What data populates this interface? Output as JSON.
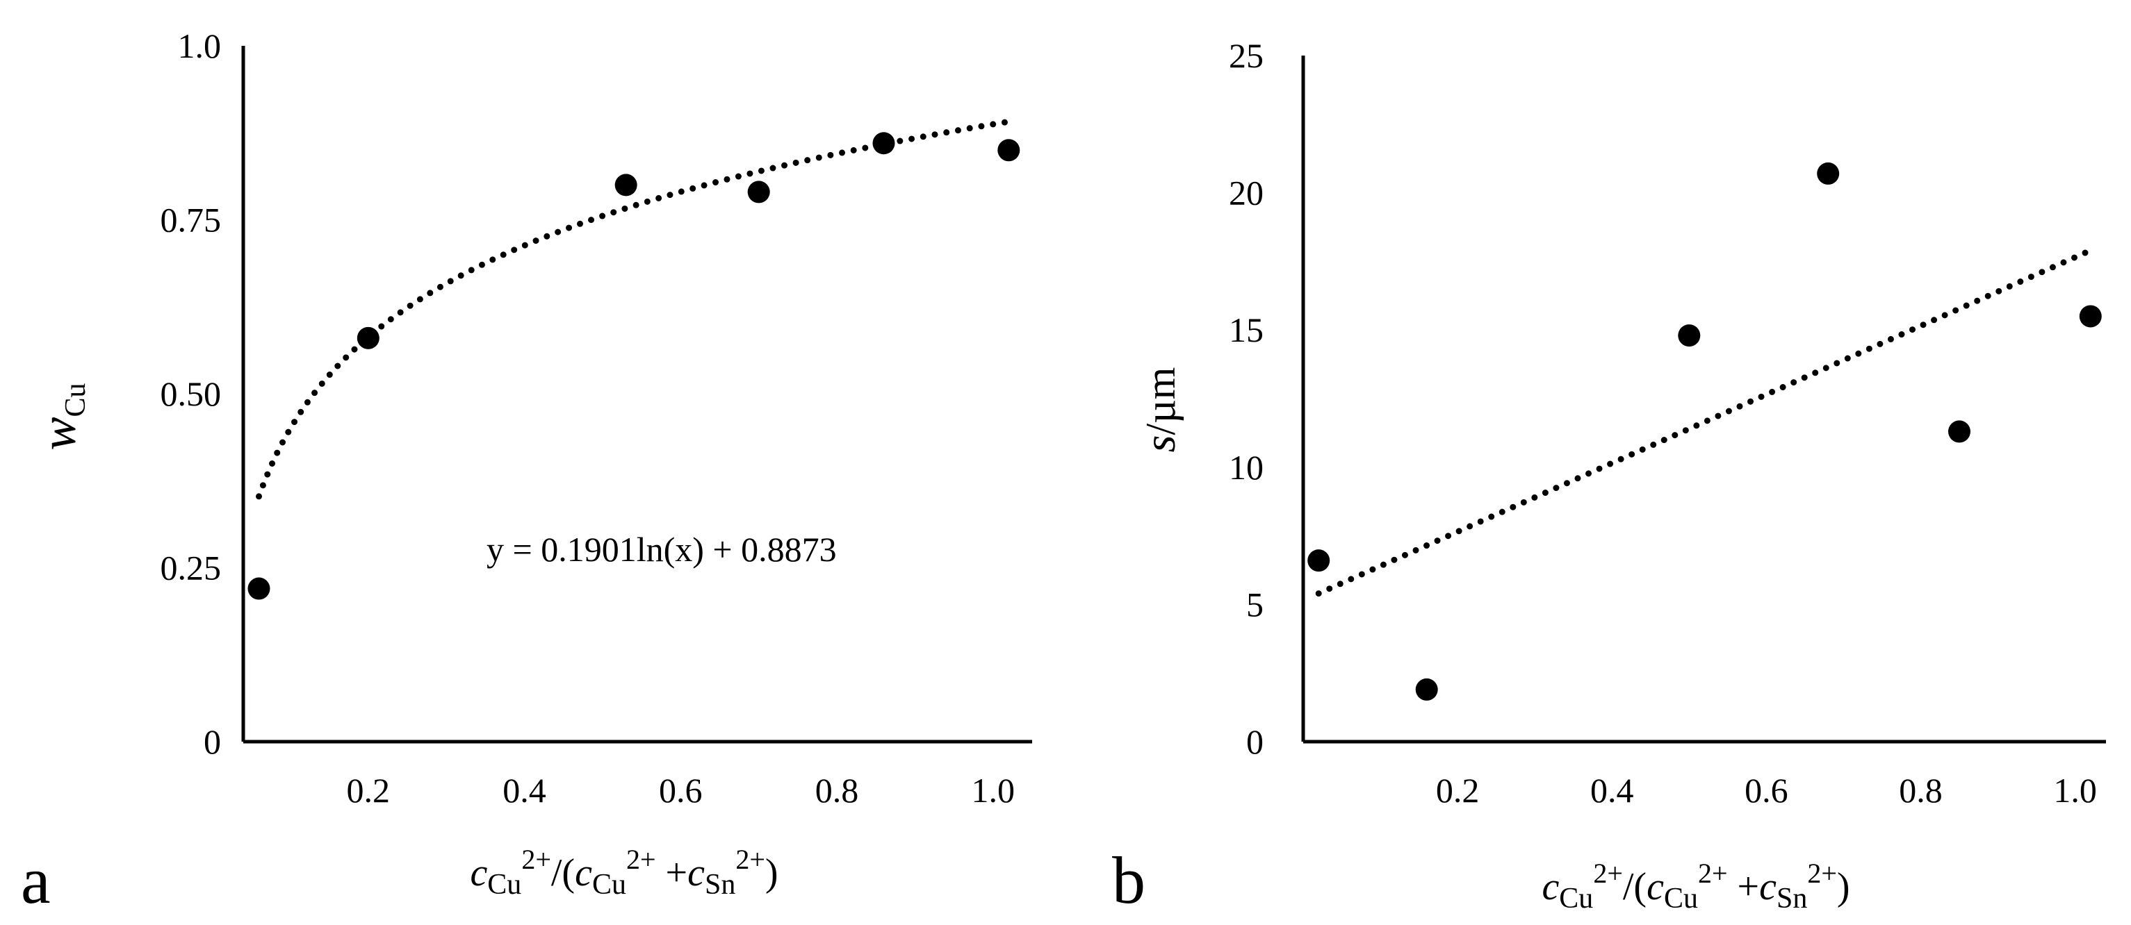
{
  "chart_data": [
    {
      "panel_label": "a",
      "type": "scatter",
      "x": [
        0.06,
        0.2,
        0.53,
        0.7,
        0.86,
        1.02
      ],
      "y": [
        0.22,
        0.58,
        0.8,
        0.79,
        0.86,
        0.85
      ],
      "trendline": {
        "kind": "log",
        "a": 0.1901,
        "b": 0.8873,
        "x_range": [
          0.06,
          1.02
        ]
      },
      "equation": "y = 0.1901ln(x) + 0.8873",
      "ylabel": {
        "main": "w",
        "sub": "Cu"
      },
      "xlabel": {
        "c1": "c",
        "s1": "Cu",
        "p1": "2+",
        "mid": "/(",
        "c2": "c",
        "s2": "Cu",
        "p2": "2+",
        "plus": " +",
        "c3": "c",
        "s3": "Sn",
        "p3": "2+",
        "end": ")"
      },
      "xlim": [
        0.04,
        1.05
      ],
      "ylim": [
        0,
        1.0
      ],
      "xticks": [
        0.2,
        0.4,
        0.6,
        0.8,
        1.0
      ],
      "xtick_labels": [
        "0.2",
        "0.4",
        "0.6",
        "0.8",
        "1.0"
      ],
      "yticks": [
        0,
        0.25,
        0.5,
        0.75,
        1.0
      ],
      "ytick_labels": [
        "0",
        "0.25",
        "0.50",
        "0.75",
        "1.0"
      ],
      "grid": false
    },
    {
      "panel_label": "b",
      "type": "scatter",
      "x": [
        0.02,
        0.16,
        0.5,
        0.68,
        0.85,
        1.02
      ],
      "y": [
        6.6,
        1.9,
        14.8,
        20.7,
        11.3,
        15.5
      ],
      "trendline": {
        "kind": "linear",
        "x_range": [
          0.02,
          1.02
        ],
        "y_range": [
          5.4,
          17.9
        ]
      },
      "ylabel": {
        "main": "s",
        "unit": "/µm"
      },
      "xlabel": {
        "c1": "c",
        "s1": "Cu",
        "p1": "2+",
        "mid": "/(",
        "c2": "c",
        "s2": "Cu",
        "p2": "2+",
        "plus": " +",
        "c3": "c",
        "s3": "Sn",
        "p3": "2+",
        "end": ")"
      },
      "xlim": [
        0.0,
        1.04
      ],
      "ylim": [
        0,
        25
      ],
      "xticks": [
        0.2,
        0.4,
        0.6,
        0.8,
        1.0
      ],
      "xtick_labels": [
        "0.2",
        "0.4",
        "0.6",
        "0.8",
        "1.0"
      ],
      "yticks": [
        0,
        5,
        10,
        15,
        20,
        25
      ],
      "ytick_labels": [
        "0",
        "5",
        "10",
        "15",
        "20",
        "25"
      ],
      "grid": false
    }
  ]
}
